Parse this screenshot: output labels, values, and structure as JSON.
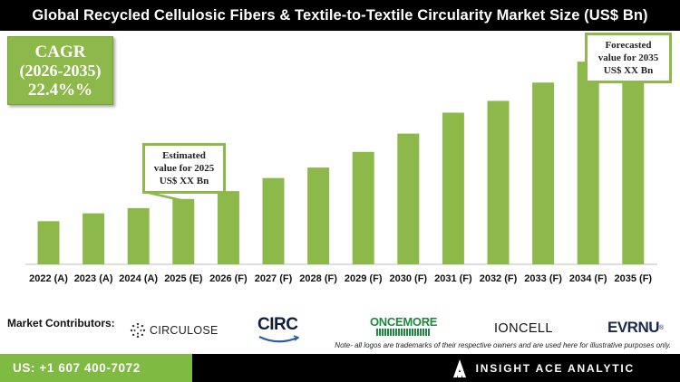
{
  "title": "Global Recycled Cellulosic Fibers & Textile-to-Textile Circularity Market Size (US$ Bn)",
  "cagr": {
    "label": "CAGR",
    "period": "(2026-2035)",
    "value": "22.4%%"
  },
  "callout_2025": {
    "line1": "Estimated",
    "line2": "value for 2025",
    "line3": "US$ XX Bn"
  },
  "callout_2035": {
    "line1": "Forecasted",
    "line2": "value for 2035",
    "line3": "US$ XX Bn"
  },
  "colors": {
    "bar": "#8db84a",
    "title_bg": "#000000",
    "footer_green": "#7fba42",
    "footer_black": "#000000"
  },
  "chart_data": {
    "type": "bar",
    "categories": [
      "2022 (A)",
      "2023 (A)",
      "2024 (A)",
      "2025 (E)",
      "2026 (F)",
      "2027 (F)",
      "2028 (F)",
      "2029 (F)",
      "2030 (F)",
      "2031 (F)",
      "2032 (F)",
      "2033 (F)",
      "2034 (F)",
      "2035 (F)"
    ],
    "values": [
      33,
      39,
      43,
      50,
      56,
      66,
      74,
      86,
      100,
      116,
      125,
      139,
      155,
      174
    ],
    "ylim": [
      0,
      180
    ],
    "title": "",
    "xlabel": "",
    "ylabel": "",
    "grid": false,
    "legend": "none"
  },
  "contributors": {
    "label": "Market Contributors:",
    "logos": [
      "CIRCULOSE",
      "CIRC",
      "ONCEMORE",
      "IONCELL",
      "EVRNU"
    ],
    "evrnu_mark": "®"
  },
  "note": "Note- all logos are trademarks of their respective owners and are used here for illustrative purposes only.",
  "footer": {
    "phone": "US: +1 607 400-7072",
    "brand": "INSIGHT ACE ANALYTIC"
  }
}
